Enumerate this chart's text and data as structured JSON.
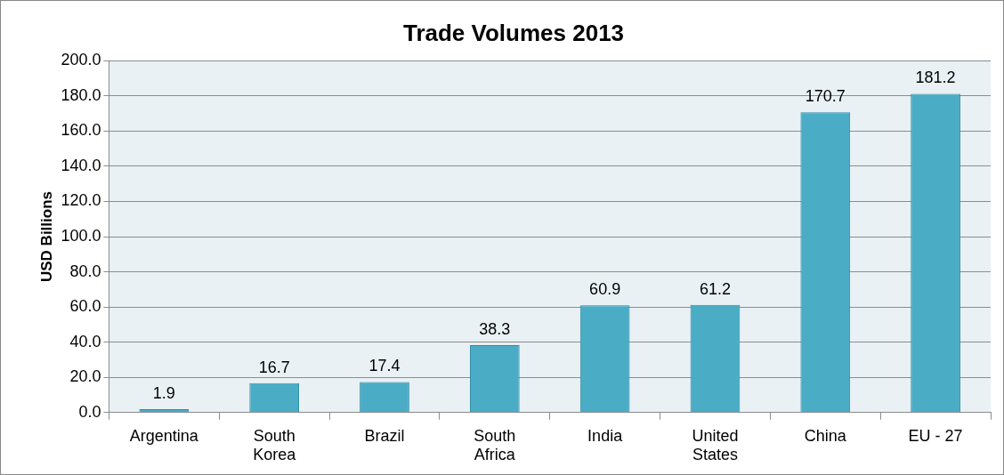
{
  "chart_data": {
    "type": "bar",
    "title": "Trade Volumes 2013",
    "ylabel": "USD Billions",
    "categories": [
      "Argentina",
      "South Korea",
      "Brazil",
      "South Africa",
      "India",
      "United States",
      "China",
      "EU - 27"
    ],
    "values": [
      1.9,
      16.7,
      17.4,
      38.3,
      60.9,
      61.2,
      170.7,
      181.2
    ],
    "color": "#4bacc6",
    "ylim": [
      0,
      200
    ],
    "yticks": [
      {
        "value": 0,
        "label": "0.0"
      },
      {
        "value": 20,
        "label": "20.0"
      },
      {
        "value": 40,
        "label": "40.0"
      },
      {
        "value": 60,
        "label": "60.0"
      },
      {
        "value": 80,
        "label": "80.0"
      },
      {
        "value": 100,
        "label": "100.0"
      },
      {
        "value": 120,
        "label": "120.0"
      },
      {
        "value": 140,
        "label": "140.0"
      },
      {
        "value": 160,
        "label": "160.0"
      },
      {
        "value": 180,
        "label": "180.0"
      },
      {
        "value": 200,
        "label": "200.0"
      }
    ],
    "grid": "y",
    "data_labels": true,
    "legend": false
  }
}
